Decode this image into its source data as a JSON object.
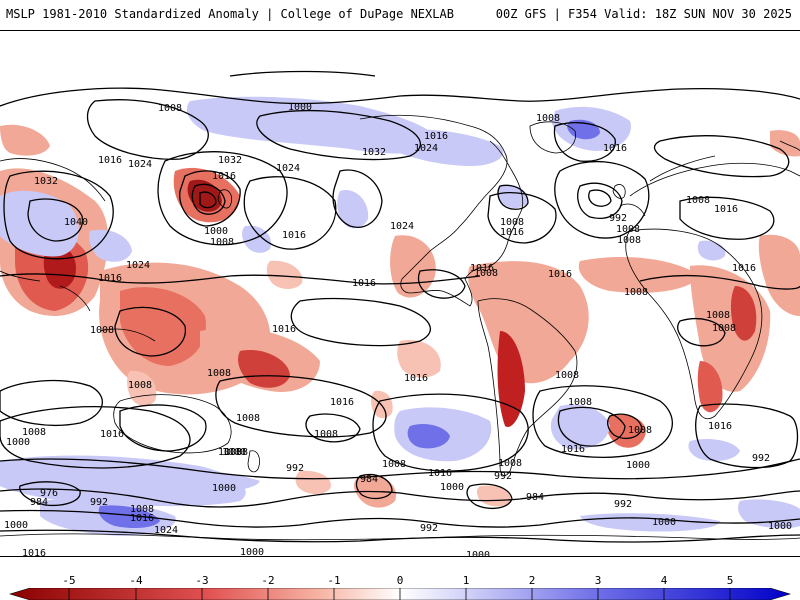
{
  "header": {
    "left_title": "MSLP 1981-2010 Standardized Anomaly | College of DuPage NEXLAB",
    "right_title": "00Z GFS | F354 Valid: 18Z SUN NOV 30 2025"
  },
  "legend": {
    "ticks": [
      "-5",
      "-4",
      "-3",
      "-2",
      "-1",
      "0",
      "1",
      "2",
      "3",
      "4",
      "5"
    ],
    "colors": {
      "neg_strong": "#8a0000",
      "neg_mid": "#e05050",
      "neg_weak": "#f7b6a6",
      "neutral": "#ffffff",
      "pos_weak": "#c9c9f7",
      "pos_mid": "#7070e8",
      "pos_strong": "#0000c8"
    }
  },
  "isobar_labels": [
    "1008",
    "1000",
    "1008",
    "1016",
    "1032",
    "1024",
    "1016",
    "1032",
    "1024",
    "1016",
    "1024",
    "1016",
    "1032",
    "1008",
    "1000",
    "1008",
    "1016",
    "1016",
    "1024",
    "1040",
    "1024",
    "1016",
    "992",
    "1008",
    "1008",
    "1008",
    "1016",
    "1016",
    "1016",
    "1008",
    "1016",
    "1016",
    "1008",
    "1008",
    "1016",
    "1008",
    "1008",
    "1008",
    "1016",
    "1008",
    "1016",
    "1008",
    "1016",
    "1000",
    "1008",
    "1008",
    "1000",
    "1008",
    "1016",
    "1016",
    "1008",
    "1000",
    "1008",
    "1008",
    "992",
    "984",
    "1000",
    "992",
    "1000",
    "992",
    "984",
    "992",
    "1000",
    "976",
    "984",
    "992",
    "1008",
    "1016",
    "1024",
    "1000",
    "1016",
    "1008",
    "1000",
    "1000",
    "992",
    "1000",
    "1016",
    "1008",
    "1008",
    "1008"
  ]
}
